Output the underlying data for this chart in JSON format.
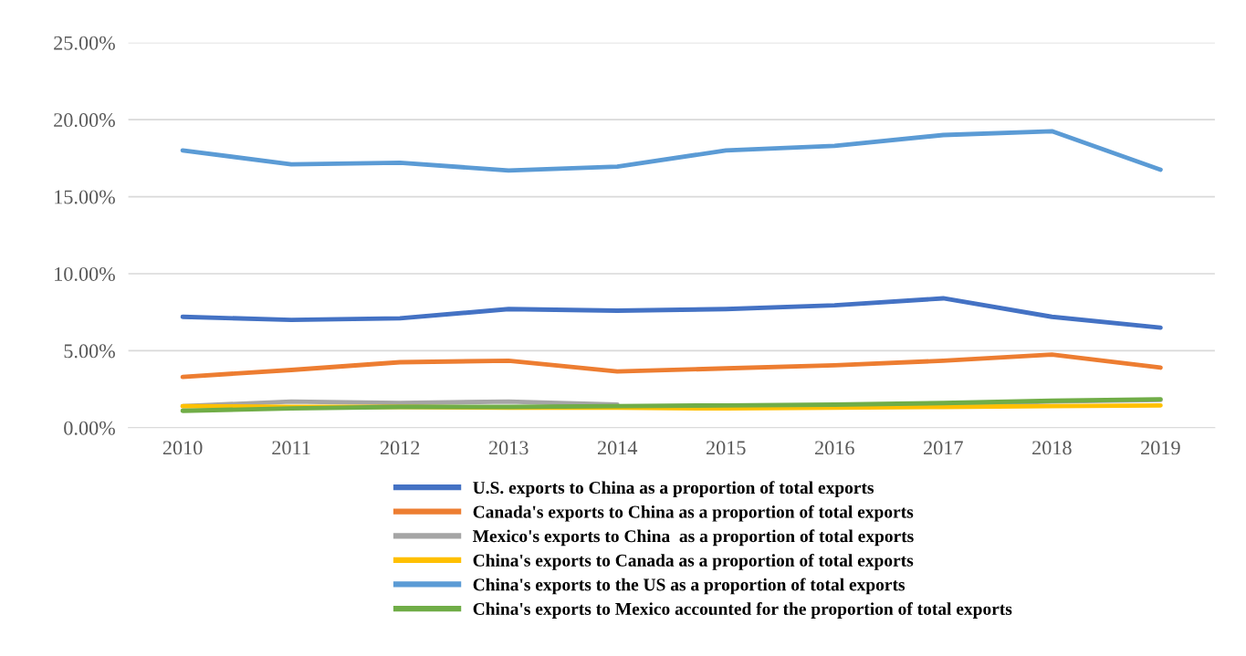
{
  "chart_data": {
    "type": "line",
    "categories": [
      "2010",
      "2011",
      "2012",
      "2013",
      "2014",
      "2015",
      "2016",
      "2017",
      "2018",
      "2019"
    ],
    "series": [
      {
        "name": "U.S. exports to China as a proportion of total exports",
        "color": "#4472c4",
        "values": [
          7.2,
          7.0,
          7.1,
          7.7,
          7.6,
          7.7,
          7.95,
          8.4,
          7.2,
          6.5
        ]
      },
      {
        "name": "Canada's exports to China as a proportion of total exports",
        "color": "#ed7d31",
        "values": [
          3.3,
          3.75,
          4.25,
          4.35,
          3.65,
          3.85,
          4.05,
          4.35,
          4.75,
          3.9
        ]
      },
      {
        "name": "Mexico's exports to China  as a proportion of total exports",
        "color": "#a5a5a5",
        "values": [
          1.4,
          1.7,
          1.6,
          1.7,
          1.5,
          null,
          null,
          1.5,
          1.7,
          1.8
        ]
      },
      {
        "name": "China's exports to Canada as a proportion of total exports",
        "color": "#ffc000",
        "values": [
          1.4,
          1.35,
          1.35,
          1.3,
          1.3,
          1.25,
          1.3,
          1.35,
          1.4,
          1.45
        ]
      },
      {
        "name": "China's exports to the US as a proportion of total exports",
        "color": "#5b9bd5",
        "values": [
          18.0,
          17.1,
          17.2,
          16.7,
          16.95,
          18.0,
          18.3,
          19.0,
          19.25,
          16.75
        ]
      },
      {
        "name": "China's exports to Mexico accounted for the proportion of total exports",
        "color": "#70ad47",
        "values": [
          1.1,
          1.25,
          1.35,
          1.35,
          1.4,
          1.45,
          1.5,
          1.6,
          1.75,
          1.85
        ]
      }
    ],
    "ylim": [
      0,
      25
    ],
    "yticks": [
      {
        "value": 0,
        "label": "0.00%"
      },
      {
        "value": 5,
        "label": "5.00%"
      },
      {
        "value": 10,
        "label": "10.00%"
      },
      {
        "value": 15,
        "label": "15.00%"
      },
      {
        "value": 20,
        "label": "20.00%"
      },
      {
        "value": 25,
        "label": "25.00%"
      }
    ],
    "grid": "y",
    "legend": "bottom",
    "marker": "none",
    "line_style": "solid"
  }
}
